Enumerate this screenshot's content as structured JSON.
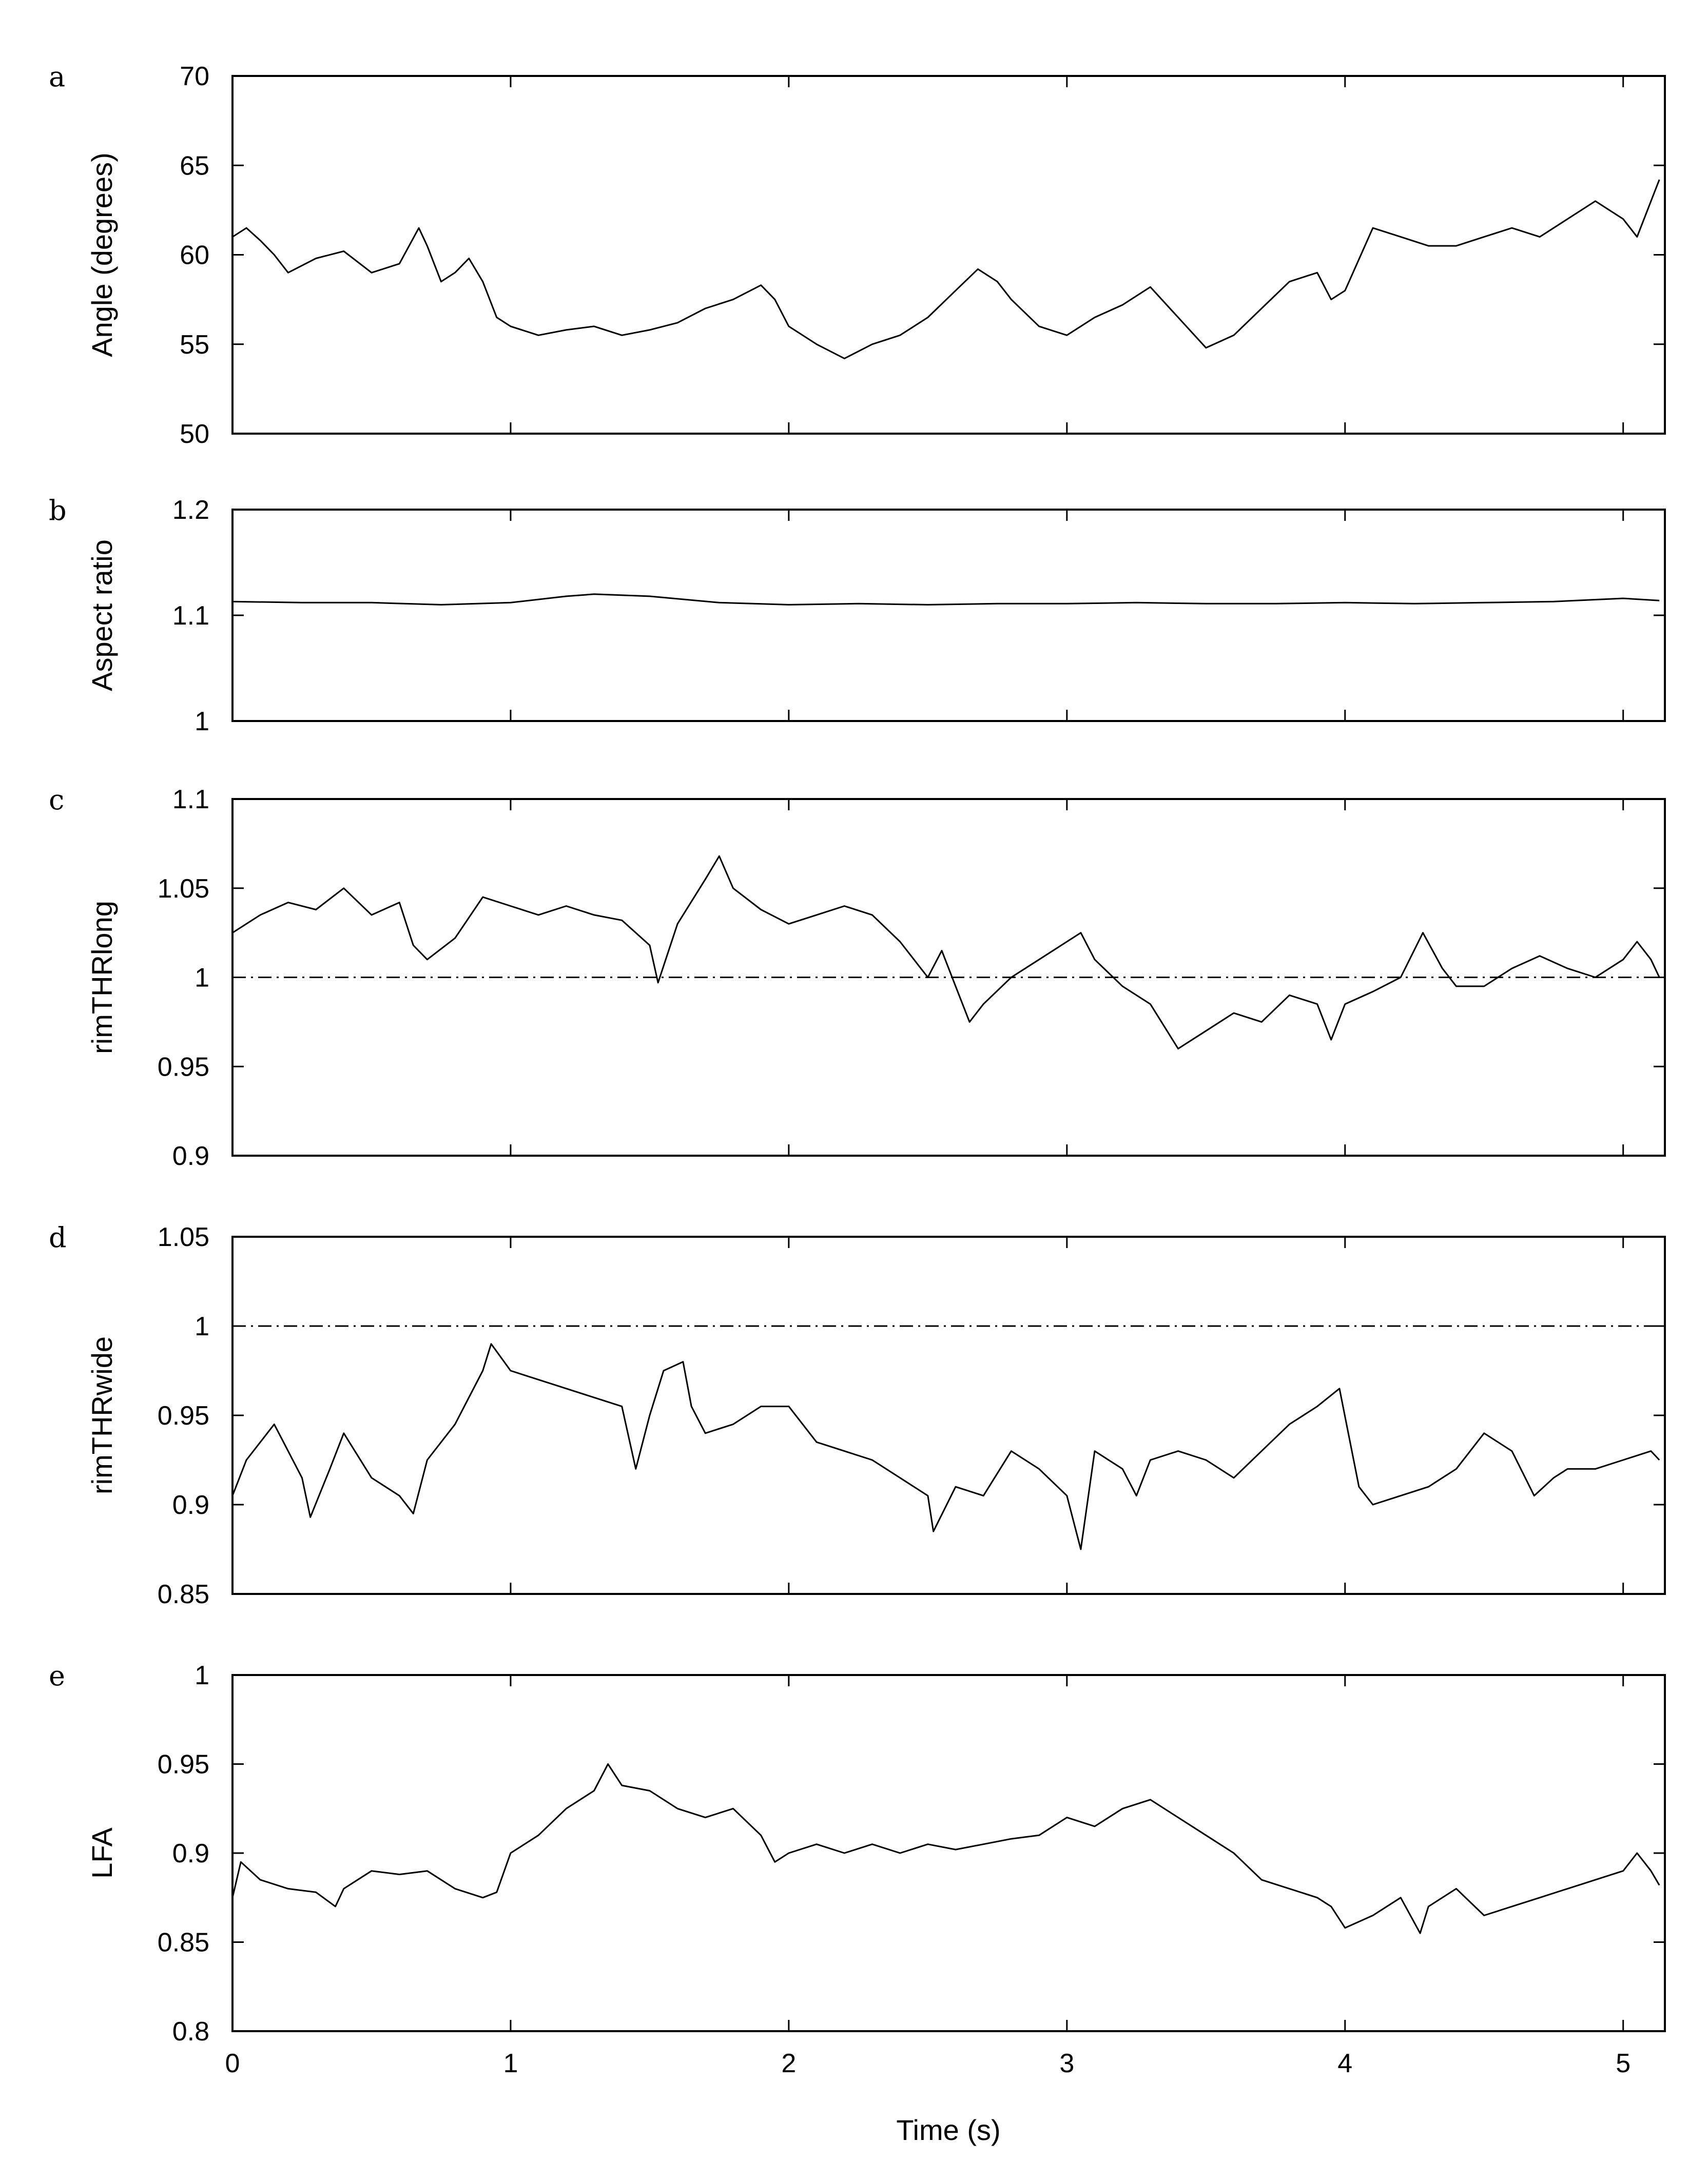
{
  "figure": {
    "x_axis": {
      "label": "Time (s)",
      "ticks": [
        "0",
        "1",
        "2",
        "3",
        "4",
        "5"
      ]
    }
  },
  "chart_data": [
    {
      "type": "line",
      "panel": "a",
      "title": "",
      "xlabel": "",
      "ylabel": "Angle (degrees)",
      "xlim": [
        0,
        5.15
      ],
      "ylim": [
        50,
        70
      ],
      "yticks": [
        "50",
        "55",
        "60",
        "65",
        "70"
      ],
      "reference_line": null,
      "series": [
        {
          "x": [
            0,
            0.05,
            0.1,
            0.15,
            0.2,
            0.3,
            0.4,
            0.5,
            0.6,
            0.67,
            0.7,
            0.75,
            0.8,
            0.85,
            0.9,
            0.95,
            1.0,
            1.1,
            1.2,
            1.3,
            1.4,
            1.5,
            1.6,
            1.7,
            1.8,
            1.9,
            1.95,
            2.0,
            2.1,
            2.2,
            2.3,
            2.4,
            2.5,
            2.6,
            2.68,
            2.75,
            2.8,
            2.9,
            3.0,
            3.1,
            3.2,
            3.3,
            3.4,
            3.5,
            3.6,
            3.7,
            3.8,
            3.9,
            3.95,
            4.0,
            4.1,
            4.2,
            4.3,
            4.4,
            4.5,
            4.6,
            4.7,
            4.8,
            4.9,
            5.0,
            5.05,
            5.1,
            5.13
          ],
          "y": [
            61.0,
            61.5,
            60.8,
            60.0,
            59.0,
            59.8,
            60.2,
            59.0,
            59.5,
            61.5,
            60.5,
            58.5,
            59.0,
            59.8,
            58.5,
            56.5,
            56.0,
            55.5,
            55.8,
            56.0,
            55.5,
            55.8,
            56.2,
            57.0,
            57.5,
            58.3,
            57.5,
            56.0,
            55.0,
            54.2,
            55.0,
            55.5,
            56.5,
            58.0,
            59.2,
            58.5,
            57.5,
            56.0,
            55.5,
            56.5,
            57.2,
            58.2,
            56.5,
            54.8,
            55.5,
            57.0,
            58.5,
            59.0,
            57.5,
            58.0,
            61.5,
            61.0,
            60.5,
            60.5,
            61.0,
            61.5,
            61.0,
            62.0,
            63.0,
            62.0,
            61.0,
            63.0,
            64.2
          ]
        }
      ]
    },
    {
      "type": "line",
      "panel": "b",
      "title": "",
      "xlabel": "",
      "ylabel": "Aspect ratio",
      "xlim": [
        0,
        5.15
      ],
      "ylim": [
        1,
        1.2
      ],
      "yticks": [
        "1",
        "1.1",
        "1.2"
      ],
      "reference_line": null,
      "series": [
        {
          "x": [
            0,
            0.25,
            0.5,
            0.75,
            1.0,
            1.2,
            1.3,
            1.5,
            1.75,
            2.0,
            2.25,
            2.5,
            2.75,
            3.0,
            3.25,
            3.5,
            3.75,
            4.0,
            4.25,
            4.5,
            4.75,
            5.0,
            5.13
          ],
          "y": [
            1.113,
            1.112,
            1.112,
            1.11,
            1.112,
            1.118,
            1.12,
            1.118,
            1.112,
            1.11,
            1.111,
            1.11,
            1.111,
            1.111,
            1.112,
            1.111,
            1.111,
            1.112,
            1.111,
            1.112,
            1.113,
            1.116,
            1.114
          ]
        }
      ]
    },
    {
      "type": "line",
      "panel": "c",
      "title": "",
      "xlabel": "",
      "ylabel": "rimTHRlong",
      "xlim": [
        0,
        5.15
      ],
      "ylim": [
        0.9,
        1.1
      ],
      "yticks": [
        "0.9",
        "0.95",
        "1",
        "1.05",
        "1.1"
      ],
      "reference_line": 1,
      "series": [
        {
          "x": [
            0,
            0.1,
            0.2,
            0.3,
            0.4,
            0.5,
            0.6,
            0.65,
            0.7,
            0.8,
            0.9,
            1.0,
            1.1,
            1.2,
            1.3,
            1.4,
            1.5,
            1.53,
            1.6,
            1.7,
            1.75,
            1.8,
            1.9,
            2.0,
            2.1,
            2.2,
            2.3,
            2.4,
            2.5,
            2.55,
            2.6,
            2.65,
            2.7,
            2.8,
            2.9,
            3.0,
            3.05,
            3.1,
            3.2,
            3.3,
            3.4,
            3.5,
            3.6,
            3.7,
            3.8,
            3.9,
            3.95,
            4.0,
            4.1,
            4.2,
            4.28,
            4.35,
            4.4,
            4.5,
            4.6,
            4.7,
            4.8,
            4.9,
            5.0,
            5.05,
            5.1,
            5.13
          ],
          "y": [
            1.025,
            1.035,
            1.042,
            1.038,
            1.05,
            1.035,
            1.042,
            1.018,
            1.01,
            1.022,
            1.045,
            1.04,
            1.035,
            1.04,
            1.035,
            1.032,
            1.018,
            0.997,
            1.03,
            1.055,
            1.068,
            1.05,
            1.038,
            1.03,
            1.035,
            1.04,
            1.035,
            1.02,
            1.0,
            1.015,
            0.995,
            0.975,
            0.985,
            1.0,
            1.01,
            1.02,
            1.025,
            1.01,
            0.995,
            0.985,
            0.96,
            0.97,
            0.98,
            0.975,
            0.99,
            0.985,
            0.965,
            0.985,
            0.992,
            1.0,
            1.025,
            1.005,
            0.995,
            0.995,
            1.005,
            1.012,
            1.005,
            1.0,
            1.01,
            1.02,
            1.01,
            1.0
          ]
        }
      ]
    },
    {
      "type": "line",
      "panel": "d",
      "title": "",
      "xlabel": "",
      "ylabel": "rimTHRwide",
      "xlim": [
        0,
        5.15
      ],
      "ylim": [
        0.85,
        1.05
      ],
      "yticks": [
        "0.85",
        "0.9",
        "0.95",
        "1",
        "1.05"
      ],
      "reference_line": 1,
      "series": [
        {
          "x": [
            0,
            0.05,
            0.15,
            0.25,
            0.28,
            0.35,
            0.4,
            0.5,
            0.6,
            0.65,
            0.7,
            0.8,
            0.9,
            0.93,
            1.0,
            1.1,
            1.2,
            1.3,
            1.4,
            1.45,
            1.5,
            1.55,
            1.62,
            1.65,
            1.7,
            1.8,
            1.9,
            2.0,
            2.1,
            2.2,
            2.3,
            2.4,
            2.5,
            2.52,
            2.6,
            2.7,
            2.8,
            2.9,
            3.0,
            3.05,
            3.1,
            3.2,
            3.25,
            3.3,
            3.4,
            3.5,
            3.6,
            3.7,
            3.8,
            3.9,
            3.98,
            4.05,
            4.1,
            4.2,
            4.3,
            4.4,
            4.5,
            4.6,
            4.68,
            4.75,
            4.8,
            4.9,
            5.0,
            5.1,
            5.13
          ],
          "y": [
            0.905,
            0.925,
            0.945,
            0.915,
            0.893,
            0.92,
            0.94,
            0.915,
            0.905,
            0.895,
            0.925,
            0.945,
            0.975,
            0.99,
            0.975,
            0.97,
            0.965,
            0.96,
            0.955,
            0.92,
            0.95,
            0.975,
            0.98,
            0.955,
            0.94,
            0.945,
            0.955,
            0.955,
            0.935,
            0.93,
            0.925,
            0.915,
            0.905,
            0.885,
            0.91,
            0.905,
            0.93,
            0.92,
            0.905,
            0.875,
            0.93,
            0.92,
            0.905,
            0.925,
            0.93,
            0.925,
            0.915,
            0.93,
            0.945,
            0.955,
            0.965,
            0.91,
            0.9,
            0.905,
            0.91,
            0.92,
            0.94,
            0.93,
            0.905,
            0.915,
            0.92,
            0.92,
            0.925,
            0.93,
            0.925
          ]
        }
      ]
    },
    {
      "type": "line",
      "panel": "e",
      "title": "",
      "xlabel": "Time (s)",
      "ylabel": "LFA",
      "xlim": [
        0,
        5.15
      ],
      "ylim": [
        0.8,
        1
      ],
      "yticks": [
        "0.8",
        "0.85",
        "0.9",
        "0.95",
        "1"
      ],
      "reference_line": null,
      "series": [
        {
          "x": [
            0,
            0.03,
            0.1,
            0.2,
            0.3,
            0.37,
            0.4,
            0.5,
            0.6,
            0.7,
            0.8,
            0.9,
            0.95,
            1.0,
            1.1,
            1.2,
            1.3,
            1.35,
            1.4,
            1.5,
            1.6,
            1.7,
            1.8,
            1.9,
            1.95,
            2.0,
            2.1,
            2.2,
            2.3,
            2.4,
            2.5,
            2.6,
            2.7,
            2.8,
            2.9,
            3.0,
            3.1,
            3.2,
            3.3,
            3.35,
            3.4,
            3.5,
            3.6,
            3.7,
            3.8,
            3.9,
            3.95,
            4.0,
            4.1,
            4.2,
            4.27,
            4.3,
            4.4,
            4.5,
            4.6,
            4.7,
            4.8,
            4.9,
            5.0,
            5.05,
            5.1,
            5.13
          ],
          "y": [
            0.875,
            0.895,
            0.885,
            0.88,
            0.878,
            0.87,
            0.88,
            0.89,
            0.888,
            0.89,
            0.88,
            0.875,
            0.878,
            0.9,
            0.91,
            0.925,
            0.935,
            0.95,
            0.938,
            0.935,
            0.925,
            0.92,
            0.925,
            0.91,
            0.895,
            0.9,
            0.905,
            0.9,
            0.905,
            0.9,
            0.905,
            0.902,
            0.905,
            0.908,
            0.91,
            0.92,
            0.915,
            0.925,
            0.93,
            0.925,
            0.92,
            0.91,
            0.9,
            0.885,
            0.88,
            0.875,
            0.87,
            0.858,
            0.865,
            0.875,
            0.855,
            0.87,
            0.88,
            0.865,
            0.87,
            0.875,
            0.88,
            0.885,
            0.89,
            0.9,
            0.89,
            0.882
          ]
        }
      ]
    }
  ]
}
